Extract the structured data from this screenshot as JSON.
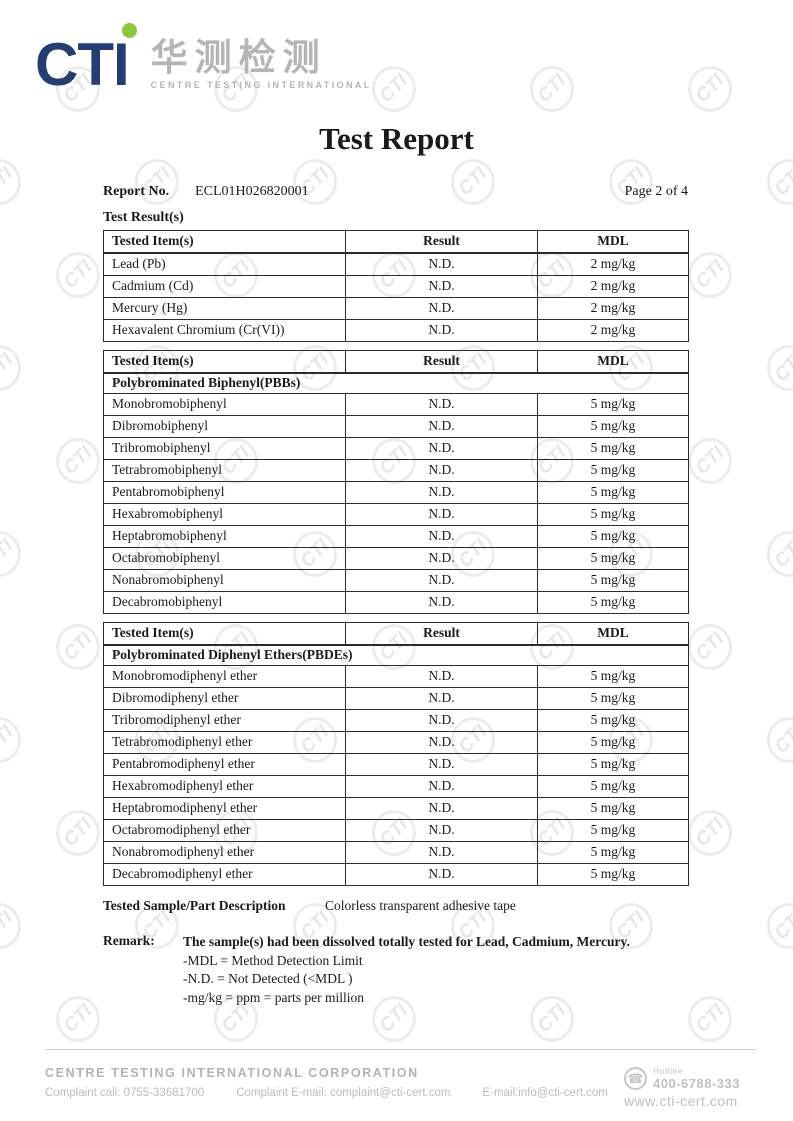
{
  "branding": {
    "logo_text_main": "CT",
    "logo_text_i": "I",
    "logo_cn": "华测检测",
    "logo_subtitle": "CENTRE TESTING INTERNATIONAL",
    "watermark_text": "CTI",
    "logo_navy": "#253d70",
    "logo_green": "#8cc63e"
  },
  "title": "Test Report",
  "report": {
    "label": "Report No.",
    "number": "ECL01H026820001",
    "page": "Page 2 of 4"
  },
  "section_heading": "Test Result(s)",
  "tables": [
    {
      "headers": [
        "Tested Item(s)",
        "Result",
        "MDL"
      ],
      "section": null,
      "rows": [
        [
          "Lead (Pb)",
          "N.D.",
          "2 mg/kg"
        ],
        [
          "Cadmium (Cd)",
          "N.D.",
          "2 mg/kg"
        ],
        [
          "Mercury (Hg)",
          "N.D.",
          "2 mg/kg"
        ],
        [
          "Hexavalent Chromium (Cr(VI))",
          "N.D.",
          "2 mg/kg"
        ]
      ]
    },
    {
      "headers": [
        "Tested Item(s)",
        "Result",
        "MDL"
      ],
      "section": "Polybrominated Biphenyl(PBBs)",
      "rows": [
        [
          "Monobromobiphenyl",
          "N.D.",
          "5 mg/kg"
        ],
        [
          "Dibromobiphenyl",
          "N.D.",
          "5 mg/kg"
        ],
        [
          "Tribromobiphenyl",
          "N.D.",
          "5 mg/kg"
        ],
        [
          "Tetrabromobiphenyl",
          "N.D.",
          "5 mg/kg"
        ],
        [
          "Pentabromobiphenyl",
          "N.D.",
          "5 mg/kg"
        ],
        [
          "Hexabromobiphenyl",
          "N.D.",
          "5 mg/kg"
        ],
        [
          "Heptabromobiphenyl",
          "N.D.",
          "5 mg/kg"
        ],
        [
          "Octabromobiphenyl",
          "N.D.",
          "5 mg/kg"
        ],
        [
          "Nonabromobiphenyl",
          "N.D.",
          "5 mg/kg"
        ],
        [
          "Decabromobiphenyl",
          "N.D.",
          "5 mg/kg"
        ]
      ]
    },
    {
      "headers": [
        "Tested Item(s)",
        "Result",
        "MDL"
      ],
      "section": "Polybrominated Diphenyl Ethers(PBDEs)",
      "rows": [
        [
          "Monobromodiphenyl ether",
          "N.D.",
          "5 mg/kg"
        ],
        [
          "Dibromodiphenyl ether",
          "N.D.",
          "5 mg/kg"
        ],
        [
          "Tribromodiphenyl ether",
          "N.D.",
          "5 mg/kg"
        ],
        [
          "Tetrabromodiphenyl ether",
          "N.D.",
          "5 mg/kg"
        ],
        [
          "Pentabromodiphenyl ether",
          "N.D.",
          "5 mg/kg"
        ],
        [
          "Hexabromodiphenyl ether",
          "N.D.",
          "5 mg/kg"
        ],
        [
          "Heptabromodiphenyl ether",
          "N.D.",
          "5 mg/kg"
        ],
        [
          "Octabromodiphenyl ether",
          "N.D.",
          "5 mg/kg"
        ],
        [
          "Nonabromodiphenyl ether",
          "N.D.",
          "5 mg/kg"
        ],
        [
          "Decabromodiphenyl ether",
          "N.D.",
          "5 mg/kg"
        ]
      ]
    }
  ],
  "sample": {
    "label": "Tested Sample/Part Description",
    "value": "Colorless transparent adhesive tape"
  },
  "remark": {
    "label": "Remark:",
    "bold_line": "The sample(s) had been dissolved totally tested for Lead, Cadmium, Mercury.",
    "lines": [
      "-MDL = Method Detection Limit",
      "-N.D. = Not Detected (<MDL )",
      "-mg/kg = ppm = parts per million"
    ]
  },
  "footer": {
    "company": "CENTRE TESTING INTERNATIONAL CORPORATION",
    "complaint_call": "Complaint call: 0755-33681700",
    "complaint_email": "Complaint E-mail: complaint@cti-cert.com",
    "email": "E-mail:info@cti-cert.com",
    "hotline_label": "Hotline",
    "hotline_number": "400-6788-333",
    "website": "www.cti-cert.com",
    "phone_icon": "phone-icon"
  }
}
